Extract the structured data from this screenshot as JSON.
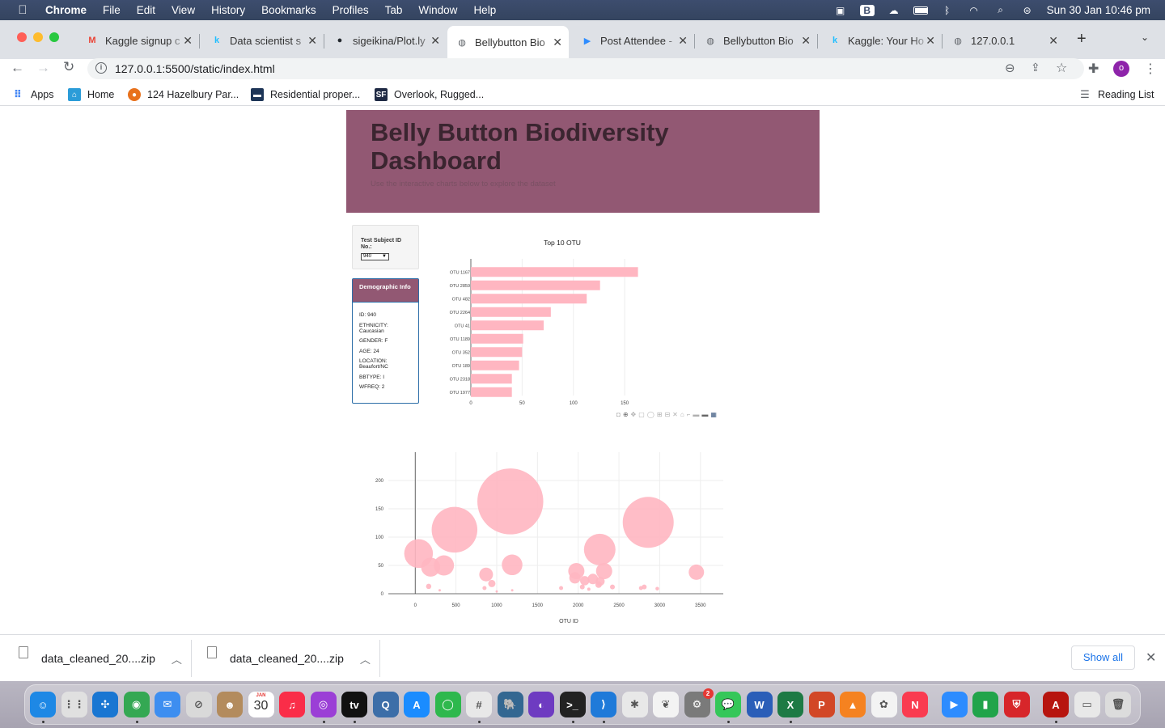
{
  "menubar": {
    "items": [
      "Chrome",
      "File",
      "Edit",
      "View",
      "History",
      "Bookmarks",
      "Profiles",
      "Tab",
      "Window",
      "Help"
    ],
    "datetime": "Sun 30 Jan  10:46 pm"
  },
  "tabs": [
    {
      "title": "Kaggle signup c",
      "favicon": "gmail-icon",
      "color": "#ea4335",
      "glyph": "M"
    },
    {
      "title": "Data scientist s",
      "favicon": "kaggle-icon",
      "color": "#20beff",
      "glyph": "k"
    },
    {
      "title": "sigeikina/Plot.ly",
      "favicon": "github-icon",
      "color": "#24292e",
      "glyph": "●"
    },
    {
      "title": "Bellybutton Bio",
      "favicon": "globe-icon",
      "color": "#5f6368",
      "glyph": "◍",
      "active": true
    },
    {
      "title": "Post Attendee -",
      "favicon": "zoom-icon",
      "color": "#2d8cff",
      "glyph": "▶"
    },
    {
      "title": "Bellybutton Bio",
      "favicon": "globe-icon",
      "color": "#5f6368",
      "glyph": "◍"
    },
    {
      "title": "Kaggle: Your Ho",
      "favicon": "kaggle-icon",
      "color": "#20beff",
      "glyph": "k"
    },
    {
      "title": "127.0.0.1",
      "favicon": "globe-icon",
      "color": "#5f6368",
      "glyph": "◍"
    }
  ],
  "toolbar": {
    "url": "127.0.0.1:5500/static/index.html",
    "profile_initial": "o"
  },
  "bookmarks": {
    "items": [
      {
        "label": "Apps",
        "icon": "apps-grid-icon",
        "color": "#4285f4"
      },
      {
        "label": "Home",
        "icon": "home-bookmark-icon",
        "color": "#2b9cd8"
      },
      {
        "label": "124 Hazelbury Par...",
        "icon": "bookmark-favicon",
        "color": "#e8711c"
      },
      {
        "label": "Residential proper...",
        "icon": "bookmark-favicon",
        "color": "#1d3557"
      },
      {
        "label": "Overlook, Rugged...",
        "icon": "bookmark-favicon",
        "color": "#1f2a44",
        "glyph": "SF"
      }
    ],
    "reading_list": "Reading List"
  },
  "dashboard": {
    "title": "Belly Button Biodiversity Dashboard",
    "subtitle": "Use the interactive charts below to explore the dataset",
    "select_label": "Test Subject ID No.:",
    "select_value": "940",
    "demo_title": "Demographic Info",
    "demo": [
      "ID: 940",
      "ETHNICITY: Caucasian",
      "GENDER: F",
      "AGE: 24",
      "LOCATION: Beaufort/NC",
      "BBTYPE: I",
      "WFREQ: 2"
    ]
  },
  "chart_data": [
    {
      "type": "bar",
      "orientation": "horizontal",
      "title": "Top 10 OTU",
      "categories": [
        "OTU 1167",
        "OTU 2859",
        "OTU 482",
        "OTU 2264",
        "OTU 41",
        "OTU 1189",
        "OTU 352",
        "OTU 189",
        "OTU 2318",
        "OTU 1977"
      ],
      "values": [
        163,
        126,
        113,
        78,
        71,
        51,
        50,
        47,
        40,
        40
      ],
      "xticks": [
        0,
        50,
        100,
        150
      ],
      "xlim": [
        0,
        172
      ],
      "color": "#ffb6c1"
    },
    {
      "type": "scatter",
      "mode": "bubble",
      "xlabel": "OTU ID",
      "xticks": [
        0,
        500,
        1000,
        1500,
        2000,
        2500,
        3000,
        3500
      ],
      "yticks": [
        0,
        50,
        100,
        150,
        200
      ],
      "xlim": [
        -330,
        3780
      ],
      "ylim": [
        0,
        250
      ],
      "color": "#ffb6c1",
      "points": [
        {
          "x": 1167,
          "y": 163
        },
        {
          "x": 2859,
          "y": 126
        },
        {
          "x": 482,
          "y": 113
        },
        {
          "x": 2264,
          "y": 78
        },
        {
          "x": 41,
          "y": 71
        },
        {
          "x": 1189,
          "y": 51
        },
        {
          "x": 352,
          "y": 50
        },
        {
          "x": 189,
          "y": 47
        },
        {
          "x": 2318,
          "y": 40
        },
        {
          "x": 1977,
          "y": 40
        },
        {
          "x": 3450,
          "y": 38
        },
        {
          "x": 870,
          "y": 34
        },
        {
          "x": 1960,
          "y": 28
        },
        {
          "x": 2180,
          "y": 26
        },
        {
          "x": 2080,
          "y": 23
        },
        {
          "x": 2270,
          "y": 22
        },
        {
          "x": 2250,
          "y": 16
        },
        {
          "x": 940,
          "y": 18
        },
        {
          "x": 2050,
          "y": 12
        },
        {
          "x": 2420,
          "y": 12
        },
        {
          "x": 2810,
          "y": 12
        },
        {
          "x": 2770,
          "y": 10
        },
        {
          "x": 165,
          "y": 13
        },
        {
          "x": 850,
          "y": 10
        },
        {
          "x": 2970,
          "y": 9
        },
        {
          "x": 1790,
          "y": 10
        },
        {
          "x": 2130,
          "y": 8
        },
        {
          "x": 300,
          "y": 6
        },
        {
          "x": 1190,
          "y": 6
        },
        {
          "x": 1000,
          "y": 4
        }
      ]
    }
  ],
  "downloads": {
    "files": [
      "data_cleaned_20....zip",
      "data_cleaned_20....zip"
    ],
    "show_all": "Show all"
  },
  "dock": {
    "apps": [
      {
        "name": "finder-icon",
        "color": "#1e88e5",
        "glyph": "☺"
      },
      {
        "name": "launchpad-icon",
        "color": "#e0e0e0",
        "glyph": "⋮⋮"
      },
      {
        "name": "safari-icon",
        "color": "#1976d2",
        "glyph": "✣"
      },
      {
        "name": "chrome-icon",
        "color": "#34a853",
        "glyph": "◉"
      },
      {
        "name": "mail-icon",
        "color": "#3d8ef0",
        "glyph": "✉"
      },
      {
        "name": "restricted-icon",
        "color": "#d9d9d9",
        "glyph": "⊘"
      },
      {
        "name": "contacts-icon",
        "color": "#b38b5d",
        "glyph": "☻"
      },
      {
        "name": "calendar-icon",
        "color": "#ffffff",
        "glyph": "30"
      },
      {
        "name": "music-icon",
        "color": "#fa2d48",
        "glyph": "♫"
      },
      {
        "name": "podcasts-icon",
        "color": "#9b3fd6",
        "glyph": "◎"
      },
      {
        "name": "apple-tv-icon",
        "color": "#111111",
        "glyph": "tv"
      },
      {
        "name": "quicktime-icon",
        "color": "#3c6ea8",
        "glyph": "Q"
      },
      {
        "name": "app-store-icon",
        "color": "#1a8cff",
        "glyph": "A"
      },
      {
        "name": "activity-icon",
        "color": "#2eb84d",
        "glyph": "◯"
      },
      {
        "name": "slack-icon",
        "color": "#e8e8e8",
        "glyph": "#"
      },
      {
        "name": "postgres-icon",
        "color": "#336791",
        "glyph": "🐘"
      },
      {
        "name": "github-desktop-icon",
        "color": "#6e3bc1",
        "glyph": "◐"
      },
      {
        "name": "terminal-icon",
        "color": "#222222",
        "glyph": ">_"
      },
      {
        "name": "vscode-icon",
        "color": "#1f7ad9",
        "glyph": "⟩"
      },
      {
        "name": "network-icon",
        "color": "#e8e8e8",
        "glyph": "✱"
      },
      {
        "name": "mongodb-icon",
        "color": "#f3f3f3",
        "glyph": "❦"
      },
      {
        "name": "system-preferences-icon",
        "color": "#7a7a7a",
        "glyph": "⚙"
      },
      {
        "name": "messages-icon",
        "color": "#35c759",
        "glyph": "💬"
      },
      {
        "name": "word-icon",
        "color": "#2b5eb8",
        "glyph": "W"
      },
      {
        "name": "excel-icon",
        "color": "#1d7a44",
        "glyph": "X"
      },
      {
        "name": "powerpoint-icon",
        "color": "#d24726",
        "glyph": "P"
      },
      {
        "name": "vlc-icon",
        "color": "#f58220",
        "glyph": "▲"
      },
      {
        "name": "photos-icon",
        "color": "#f3f3f3",
        "glyph": "✿"
      },
      {
        "name": "news-icon",
        "color": "#fa3b50",
        "glyph": "N"
      },
      {
        "name": "zoom-icon",
        "color": "#2d8cff",
        "glyph": "▶"
      },
      {
        "name": "numbers-icon",
        "color": "#21a44a",
        "glyph": "▮"
      },
      {
        "name": "shield-app-icon",
        "color": "#d7262a",
        "glyph": "⛨"
      },
      {
        "name": "acrobat-icon",
        "color": "#b7150f",
        "glyph": "A"
      },
      {
        "name": "documents-folder-icon",
        "color": "#e8e8e8",
        "glyph": "▭"
      },
      {
        "name": "trash-icon",
        "color": "#dcdcdc",
        "glyph": "🗑"
      }
    ],
    "calendar_month": "JAN",
    "badge": "2"
  }
}
